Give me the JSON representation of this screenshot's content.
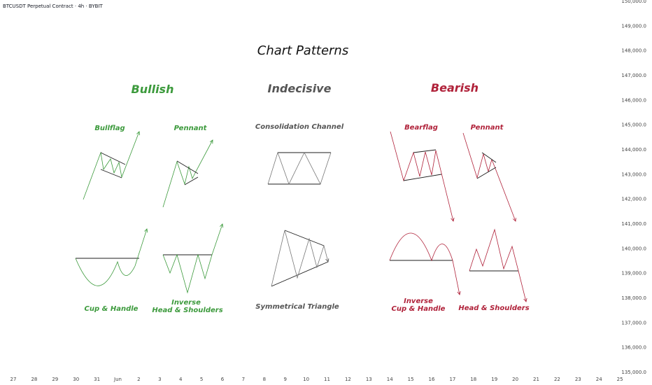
{
  "header": {
    "symbol": "BTCUSDT Perpetual Contract · 4h · BYBIT"
  },
  "colors": {
    "bullish": "#3c9a3c",
    "indecisive": "#555555",
    "bearish": "#b0223a",
    "neutral": "#1e1e1e",
    "grid_text": "#444444"
  },
  "chart_data": {
    "type": "line",
    "title": "Chart Patterns",
    "x_ticks": [
      "27",
      "28",
      "29",
      "30",
      "31",
      "Jun",
      "2",
      "3",
      "4",
      "5",
      "6",
      "7",
      "8",
      "9",
      "10",
      "11",
      "12",
      "13",
      "14",
      "15",
      "16",
      "17",
      "18",
      "19",
      "20",
      "21",
      "22",
      "23",
      "24",
      "25"
    ],
    "y_ticks": [
      "150,000.0",
      "149,000.0",
      "148,000.0",
      "147,000.0",
      "146,000.0",
      "145,000.0",
      "144,000.0",
      "143,000.0",
      "142,000.0",
      "141,000.0",
      "140,000.0",
      "139,000.0",
      "138,000.0",
      "137,000.0",
      "136,000.0",
      "135,000.0"
    ],
    "ylim": [
      135000,
      150000
    ],
    "sections": [
      "Bullish",
      "Indecisive",
      "Bearish"
    ],
    "patterns": [
      {
        "name": "Bullflag",
        "group": "Bullish"
      },
      {
        "name": "Pennant",
        "group": "Bullish"
      },
      {
        "name": "Cup & Handle",
        "group": "Bullish"
      },
      {
        "name": "Inverse Head & Shoulders",
        "group": "Bullish"
      },
      {
        "name": "Consolidation Channel",
        "group": "Indecisive"
      },
      {
        "name": "Symmetrical Triangle",
        "group": "Indecisive"
      },
      {
        "name": "Bearflag",
        "group": "Bearish"
      },
      {
        "name": "Pennant",
        "group": "Bearish"
      },
      {
        "name": "Inverse Cup & Handle",
        "group": "Bearish"
      },
      {
        "name": "Head & Shoulders",
        "group": "Bearish"
      }
    ]
  },
  "labels": {
    "title": "Chart Patterns",
    "bullish": "Bullish",
    "indecisive": "Indecisive",
    "bearish": "Bearish",
    "bullflag": "Bullflag",
    "pennant_bull": "Pennant",
    "cup_handle": "Cup & Handle",
    "ihs_line1": "Inverse",
    "ihs_line2": "Head & Shoulders",
    "consolidation": "Consolidation Channel",
    "sym_triangle": "Symmetrical Triangle",
    "bearflag": "Bearflag",
    "pennant_bear": "Pennant",
    "icup_line1": "Inverse",
    "icup_line2": "Cup & Handle",
    "head_shoulders": "Head & Shoulders"
  }
}
